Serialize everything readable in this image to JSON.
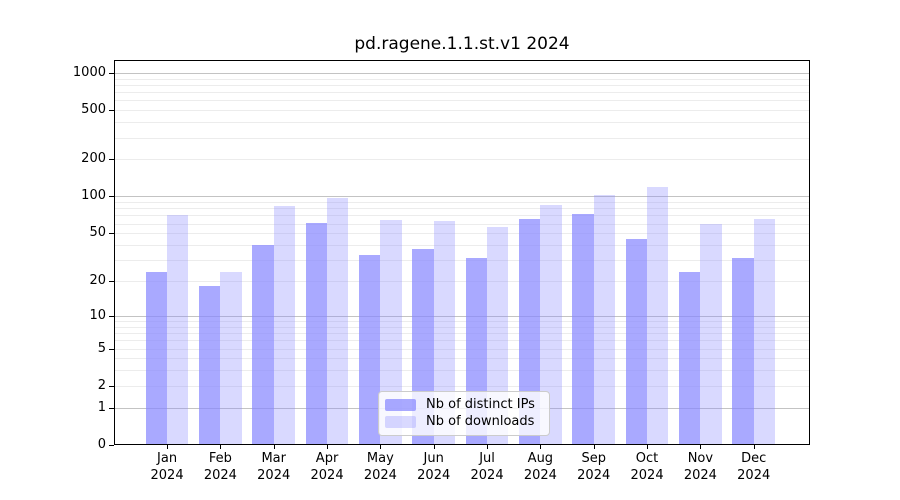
{
  "title": "pd.ragene.1.1.st.v1 2024",
  "chart_data": {
    "type": "bar",
    "title": "pd.ragene.1.1.st.v1 2024",
    "categories": [
      "Jan",
      "Feb",
      "Mar",
      "Apr",
      "May",
      "Jun",
      "Jul",
      "Aug",
      "Sep",
      "Oct",
      "Nov",
      "Dec"
    ],
    "year": "2024",
    "series": [
      {
        "name": "Nb of distinct IPs",
        "color": "#8888ff",
        "alpha": 0.72,
        "values": [
          24,
          18,
          40,
          61,
          33,
          37,
          31,
          66,
          72,
          45,
          24,
          31
        ]
      },
      {
        "name": "Nb of downloads",
        "color": "#8888ff",
        "alpha": 0.32,
        "values": [
          71,
          24,
          84,
          97,
          64,
          63,
          56,
          85,
          102,
          120,
          60,
          66
        ]
      }
    ],
    "xlabel": "",
    "ylabel": "",
    "yscale": "log1p",
    "ylim": [
      0,
      1273
    ],
    "yticks": [
      0,
      1,
      2,
      5,
      10,
      20,
      50,
      100,
      200,
      500,
      1000
    ],
    "ytick_labels": [
      "0",
      "1",
      "2",
      "5",
      "10",
      "20",
      "50",
      "100",
      "200",
      "500",
      "1000"
    ],
    "grid": true,
    "grid_major_at": [
      1,
      10,
      100,
      1000
    ],
    "legend_position": "lower center"
  },
  "colors": {
    "bar_base": "#8888ff",
    "grid_major": "#c3c3c3",
    "grid_minor": "#ececec",
    "axis": "#000000",
    "background": "#ffffff",
    "legend_border": "#cccccc",
    "legend_background": "rgba(255,255,255,0.8)"
  }
}
